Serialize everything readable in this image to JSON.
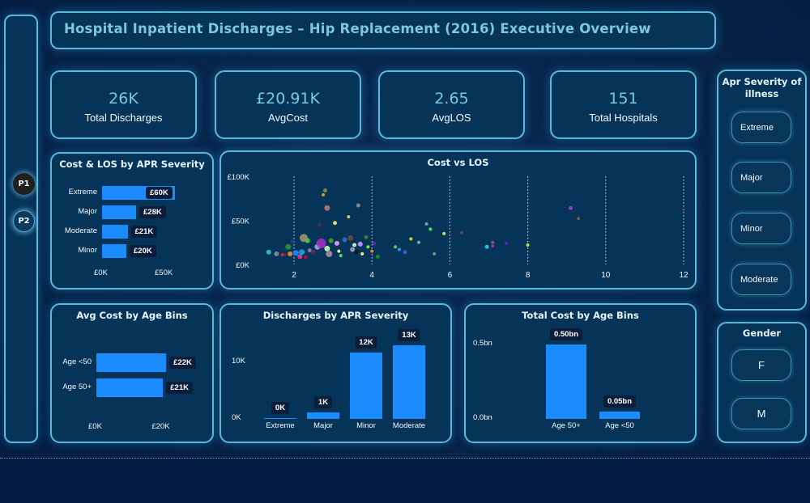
{
  "header": {
    "title": "Hospital Inpatient Discharges – Hip Replacement (2016) Executive Overview"
  },
  "nav": {
    "pages": [
      {
        "label": "P1",
        "active": true
      },
      {
        "label": "P2",
        "active": false
      }
    ]
  },
  "kpis": [
    {
      "value": "26K",
      "label": "Total Discharges"
    },
    {
      "value": "£20.91K",
      "label": "AvgCost"
    },
    {
      "value": "2.65",
      "label": "AvgLOS"
    },
    {
      "value": "151",
      "label": "Total Hospitals"
    }
  ],
  "slicers": {
    "severity": {
      "title": "Apr Severity of illness",
      "options": [
        "Extreme",
        "Major",
        "Minor",
        "Moderate"
      ]
    },
    "gender": {
      "title": "Gender",
      "options": [
        "F",
        "M"
      ]
    }
  },
  "colors": {
    "accent_bar": "#1a8cff",
    "panel_bg": "#063458",
    "panel_border": "#5bb8d8",
    "title_text": "#7cc7e0",
    "page_bg": "#021b42"
  },
  "chart_data": [
    {
      "id": "cost_los_by_severity",
      "type": "bar",
      "orientation": "horizontal",
      "title": "Cost & LOS by APR Severity",
      "categories": [
        "Extreme",
        "Major",
        "Moderate",
        "Minor"
      ],
      "values": [
        60,
        28,
        21,
        20
      ],
      "value_labels": [
        "£60K",
        "£28K",
        "£21K",
        "£20K"
      ],
      "xlim": [
        0,
        60
      ],
      "xticks": [
        {
          "v": 0,
          "label": "£0K"
        },
        {
          "v": 50,
          "label": "£50K"
        }
      ],
      "unit": "£K"
    },
    {
      "id": "cost_vs_los",
      "type": "scatter",
      "title": "Cost vs LOS",
      "xlabel": "",
      "ylabel": "",
      "xlim": [
        0.8,
        12.2
      ],
      "ylim": [
        0,
        100
      ],
      "xticks": [
        2,
        4,
        6,
        8,
        10,
        12
      ],
      "yticks": [
        {
          "v": 0,
          "label": "£0K"
        },
        {
          "v": 50,
          "label": "£50K"
        },
        {
          "v": 100,
          "label": "£100K"
        }
      ],
      "grid": "vertical dotted",
      "points": [
        {
          "x": 1.35,
          "y": 14,
          "s": 3,
          "c": "#28c8c0"
        },
        {
          "x": 1.55,
          "y": 12,
          "s": 3,
          "c": "#8d8d8d"
        },
        {
          "x": 1.7,
          "y": 11,
          "s": 2,
          "c": "#d03040"
        },
        {
          "x": 1.78,
          "y": 11,
          "s": 2,
          "c": "#7a1c3a"
        },
        {
          "x": 1.85,
          "y": 20,
          "s": 3.5,
          "c": "#1f9a3a"
        },
        {
          "x": 1.9,
          "y": 12,
          "s": 3,
          "c": "#f09040"
        },
        {
          "x": 1.95,
          "y": 26,
          "s": 2.5,
          "c": "#2a3a8a"
        },
        {
          "x": 2.05,
          "y": 13,
          "s": 3.5,
          "c": "#1a8cff"
        },
        {
          "x": 2.15,
          "y": 9,
          "s": 3,
          "c": "#e03a8a"
        },
        {
          "x": 2.2,
          "y": 14,
          "s": 3.5,
          "c": "#20a0e0"
        },
        {
          "x": 2.25,
          "y": 30,
          "s": 5,
          "c": "#a09070"
        },
        {
          "x": 2.3,
          "y": 8,
          "s": 2,
          "c": "#d01030"
        },
        {
          "x": 2.35,
          "y": 27,
          "s": 3,
          "c": "#38d838"
        },
        {
          "x": 2.4,
          "y": 16,
          "s": 2.5,
          "c": "#8a8a9a"
        },
        {
          "x": 2.5,
          "y": 14,
          "s": 3,
          "c": "#5a2a6a"
        },
        {
          "x": 2.6,
          "y": 20,
          "s": 3.5,
          "c": "#b0a0e0"
        },
        {
          "x": 2.65,
          "y": 45,
          "s": 2.5,
          "c": "#4a3050"
        },
        {
          "x": 2.7,
          "y": 24,
          "s": 6,
          "c": "#a030c0"
        },
        {
          "x": 2.75,
          "y": 79,
          "s": 2,
          "c": "#e0b010"
        },
        {
          "x": 2.8,
          "y": 84,
          "s": 2.5,
          "c": "#9a9040"
        },
        {
          "x": 2.85,
          "y": 64,
          "s": 3.5,
          "c": "#b07a6a"
        },
        {
          "x": 2.85,
          "y": 18,
          "s": 3.5,
          "c": "#c0ffc0"
        },
        {
          "x": 2.9,
          "y": 12,
          "s": 4,
          "c": "#b08a9a"
        },
        {
          "x": 2.95,
          "y": 27,
          "s": 3,
          "c": "#50a030"
        },
        {
          "x": 3.05,
          "y": 47,
          "s": 2.5,
          "c": "#f0f060"
        },
        {
          "x": 3.1,
          "y": 24,
          "s": 3,
          "c": "#e0a0ff"
        },
        {
          "x": 3.15,
          "y": 15,
          "s": 2,
          "c": "#ffffa0"
        },
        {
          "x": 3.2,
          "y": 10,
          "s": 2,
          "c": "#40ff40"
        },
        {
          "x": 3.3,
          "y": 28,
          "s": 3,
          "c": "#3070d0"
        },
        {
          "x": 3.4,
          "y": 54,
          "s": 2,
          "c": "#f0e040"
        },
        {
          "x": 3.45,
          "y": 30,
          "s": 3.5,
          "c": "#6a4a3a"
        },
        {
          "x": 3.5,
          "y": 17,
          "s": 3,
          "c": "#a0a0b0"
        },
        {
          "x": 3.55,
          "y": 22,
          "s": 2.5,
          "c": "#d0ffd0"
        },
        {
          "x": 3.6,
          "y": 14,
          "s": 2.5,
          "c": "#101020"
        },
        {
          "x": 3.65,
          "y": 67,
          "s": 2.5,
          "c": "#909090"
        },
        {
          "x": 3.7,
          "y": 23,
          "s": 3,
          "c": "#c0a0ff"
        },
        {
          "x": 3.75,
          "y": 12,
          "s": 2,
          "c": "#ffff80"
        },
        {
          "x": 3.85,
          "y": 31,
          "s": 2.5,
          "c": "#3a8a30"
        },
        {
          "x": 3.9,
          "y": 20,
          "s": 2,
          "c": "#80ff40"
        },
        {
          "x": 4.0,
          "y": 15,
          "s": 2,
          "c": "#ff8040"
        },
        {
          "x": 4.05,
          "y": 24,
          "s": 2.5,
          "c": "#6030a0"
        },
        {
          "x": 4.15,
          "y": 9,
          "s": 2.5,
          "c": "#208a30"
        },
        {
          "x": 4.6,
          "y": 20,
          "s": 2,
          "c": "#60e060"
        },
        {
          "x": 4.7,
          "y": 17,
          "s": 2,
          "c": "#40a0ff"
        },
        {
          "x": 4.85,
          "y": 14,
          "s": 2.5,
          "c": "#5060d0"
        },
        {
          "x": 5.0,
          "y": 29,
          "s": 2,
          "c": "#e0e040"
        },
        {
          "x": 5.2,
          "y": 25,
          "s": 2,
          "c": "#40e0a0"
        },
        {
          "x": 5.4,
          "y": 46,
          "s": 2,
          "c": "#a0a0a0"
        },
        {
          "x": 5.5,
          "y": 40,
          "s": 2,
          "c": "#40ff60"
        },
        {
          "x": 5.6,
          "y": 12,
          "s": 2,
          "c": "#a09080"
        },
        {
          "x": 5.85,
          "y": 35,
          "s": 2,
          "c": "#e0ff40"
        },
        {
          "x": 6.3,
          "y": 36,
          "s": 2,
          "c": "#6a3a8a"
        },
        {
          "x": 6.95,
          "y": 20,
          "s": 2.5,
          "c": "#20d0ff"
        },
        {
          "x": 7.1,
          "y": 25,
          "s": 2,
          "c": "#906060"
        },
        {
          "x": 7.1,
          "y": 21,
          "s": 2,
          "c": "#c020c0"
        },
        {
          "x": 7.45,
          "y": 24,
          "s": 2,
          "c": "#6020e0"
        },
        {
          "x": 8.0,
          "y": 22,
          "s": 2,
          "c": "#a0ff40"
        },
        {
          "x": 9.1,
          "y": 64,
          "s": 2.5,
          "c": "#a040e0"
        },
        {
          "x": 9.3,
          "y": 52,
          "s": 1.8,
          "c": "#a06040"
        },
        {
          "x": 12.0,
          "y": 62,
          "s": 1.8,
          "c": "#604080"
        }
      ]
    },
    {
      "id": "avg_cost_by_age",
      "type": "bar",
      "orientation": "horizontal",
      "title": "Avg Cost by Age Bins",
      "categories": [
        "Age <50",
        "Age 50+"
      ],
      "values": [
        22,
        21
      ],
      "value_labels": [
        "£22K",
        "£21K"
      ],
      "xlim": [
        0,
        24
      ],
      "xticks": [
        {
          "v": 0,
          "label": "£0K"
        },
        {
          "v": 20,
          "label": "£20K"
        }
      ],
      "unit": "£K"
    },
    {
      "id": "discharges_by_severity",
      "type": "bar",
      "orientation": "vertical",
      "title": "Discharges by APR Severity",
      "categories": [
        "Extreme",
        "Major",
        "Minor",
        "Moderate"
      ],
      "values": [
        0.1,
        1.2,
        11.7,
        13.0
      ],
      "value_labels": [
        "0K",
        "1K",
        "12K",
        "13K"
      ],
      "ylim": [
        0,
        14
      ],
      "yticks": [
        {
          "v": 0,
          "label": "0K"
        },
        {
          "v": 10,
          "label": "10K"
        }
      ],
      "unit": "K discharges"
    },
    {
      "id": "total_cost_by_age",
      "type": "bar",
      "orientation": "vertical",
      "title": "Total Cost by Age Bins",
      "categories": [
        "Age 50+",
        "Age <50"
      ],
      "values": [
        0.5,
        0.05
      ],
      "value_labels": [
        "0.50bn",
        "0.05bn"
      ],
      "ylim": [
        0,
        0.6
      ],
      "yticks": [
        {
          "v": 0,
          "label": "0.0bn"
        },
        {
          "v": 0.5,
          "label": "0.5bn"
        }
      ],
      "unit": "£bn"
    }
  ]
}
